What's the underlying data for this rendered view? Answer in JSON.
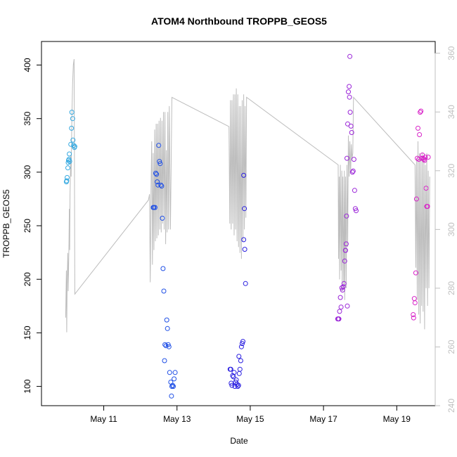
{
  "chart_data": {
    "type": "scatter",
    "title": "ATOM4 Northbound TROPPB_GEOS5",
    "xlabel": "Date",
    "ylabel": "TROPPB_GEOS5",
    "x_ticks": [
      {
        "t": 11,
        "label": "May 11"
      },
      {
        "t": 13,
        "label": "May 13"
      },
      {
        "t": 15,
        "label": "May 15"
      },
      {
        "t": 17,
        "label": "May 17"
      },
      {
        "t": 19,
        "label": "May 19"
      }
    ],
    "xlim": [
      9.3,
      20.05
    ],
    "ylim": [
      82,
      422
    ],
    "y_ticks": [
      100,
      150,
      200,
      250,
      300,
      350,
      400
    ],
    "y2_ticks": [
      240,
      260,
      280,
      300,
      320,
      340,
      360
    ],
    "y2lim": [
      240,
      364
    ],
    "colors": {
      "flight1": "#33a8e0",
      "flight2": "#1f4fe6",
      "flight3": "#2a1fe0",
      "flight4": "#9a24d8",
      "flight5": "#d824c8",
      "line": "#bdbdbd"
    },
    "series": [
      {
        "color_key": "flight1",
        "points": [
          [
            9.98,
            291
          ],
          [
            9.99,
            292
          ],
          [
            10.0,
            295
          ],
          [
            10.02,
            304
          ],
          [
            10.03,
            309
          ],
          [
            10.04,
            311
          ],
          [
            10.05,
            312
          ],
          [
            10.06,
            317
          ],
          [
            10.07,
            310
          ],
          [
            10.1,
            326
          ],
          [
            10.12,
            341
          ],
          [
            10.13,
            356
          ],
          [
            10.15,
            350
          ],
          [
            10.16,
            330
          ],
          [
            10.18,
            325
          ],
          [
            10.2,
            323
          ],
          [
            10.21,
            324
          ]
        ]
      },
      {
        "color_key": "flight2",
        "points": [
          [
            12.35,
            267
          ],
          [
            12.37,
            267
          ],
          [
            12.4,
            267
          ],
          [
            12.42,
            299
          ],
          [
            12.44,
            298
          ],
          [
            12.46,
            291
          ],
          [
            12.48,
            288
          ],
          [
            12.5,
            325
          ],
          [
            12.52,
            310
          ],
          [
            12.54,
            308
          ],
          [
            12.56,
            288
          ],
          [
            12.58,
            287
          ],
          [
            12.6,
            257
          ],
          [
            12.62,
            210
          ],
          [
            12.64,
            189
          ],
          [
            12.67,
            139
          ],
          [
            12.7,
            138
          ],
          [
            12.72,
            162
          ],
          [
            12.74,
            154
          ],
          [
            12.76,
            139
          ],
          [
            12.78,
            137
          ],
          [
            12.66,
            124
          ],
          [
            12.8,
            113
          ],
          [
            12.83,
            104
          ],
          [
            12.86,
            100
          ],
          [
            12.88,
            101
          ],
          [
            12.9,
            100
          ],
          [
            12.92,
            107
          ],
          [
            12.85,
            91
          ],
          [
            12.95,
            113
          ]
        ]
      },
      {
        "color_key": "flight3",
        "points": [
          [
            14.45,
            116
          ],
          [
            14.47,
            116
          ],
          [
            14.48,
            103
          ],
          [
            14.5,
            101
          ],
          [
            14.52,
            110
          ],
          [
            14.54,
            109
          ],
          [
            14.56,
            113
          ],
          [
            14.58,
            100
          ],
          [
            14.6,
            104
          ],
          [
            14.62,
            106
          ],
          [
            14.64,
            102
          ],
          [
            14.66,
            100
          ],
          [
            14.68,
            101
          ],
          [
            14.7,
            112
          ],
          [
            14.72,
            116
          ],
          [
            14.74,
            124
          ],
          [
            14.76,
            137
          ],
          [
            14.78,
            140
          ],
          [
            14.8,
            142
          ],
          [
            14.82,
            297
          ],
          [
            14.84,
            266
          ],
          [
            14.82,
            237
          ],
          [
            14.85,
            228
          ],
          [
            14.87,
            196
          ],
          [
            14.69,
            128
          ]
        ]
      },
      {
        "color_key": "flight4",
        "points": [
          [
            17.39,
            163
          ],
          [
            17.41,
            163
          ],
          [
            17.42,
            163
          ],
          [
            17.44,
            170
          ],
          [
            17.46,
            183
          ],
          [
            17.48,
            174
          ],
          [
            17.5,
            192
          ],
          [
            17.52,
            190
          ],
          [
            17.54,
            193
          ],
          [
            17.56,
            196
          ],
          [
            17.58,
            217
          ],
          [
            17.6,
            227
          ],
          [
            17.62,
            233
          ],
          [
            17.63,
            259
          ],
          [
            17.64,
            313
          ],
          [
            17.66,
            345
          ],
          [
            17.68,
            375
          ],
          [
            17.7,
            380
          ],
          [
            17.71,
            370
          ],
          [
            17.72,
            408
          ],
          [
            17.73,
            356
          ],
          [
            17.75,
            343
          ],
          [
            17.77,
            337
          ],
          [
            17.79,
            300
          ],
          [
            17.81,
            301
          ],
          [
            17.83,
            312
          ],
          [
            17.85,
            283
          ],
          [
            17.87,
            266
          ],
          [
            17.89,
            264
          ],
          [
            17.6,
            227
          ],
          [
            17.65,
            175
          ]
        ]
      },
      {
        "color_key": "flight5",
        "points": [
          [
            19.45,
            167
          ],
          [
            19.46,
            164
          ],
          [
            19.48,
            182
          ],
          [
            19.5,
            178
          ],
          [
            19.52,
            206
          ],
          [
            19.54,
            275
          ],
          [
            19.56,
            313
          ],
          [
            19.58,
            341
          ],
          [
            19.6,
            312
          ],
          [
            19.62,
            335
          ],
          [
            19.64,
            356
          ],
          [
            19.66,
            357
          ],
          [
            19.68,
            313
          ],
          [
            19.7,
            316
          ],
          [
            19.72,
            313
          ],
          [
            19.74,
            312
          ],
          [
            19.76,
            311
          ],
          [
            19.78,
            314
          ],
          [
            19.8,
            285
          ],
          [
            19.82,
            268
          ],
          [
            19.84,
            268
          ],
          [
            19.86,
            314
          ]
        ]
      }
    ],
    "line_y2": [
      [
        9.96,
        270
      ],
      [
        9.98,
        286
      ],
      [
        9.99,
        265
      ],
      [
        10.0,
        282
      ],
      [
        10.02,
        292
      ],
      [
        10.03,
        279
      ],
      [
        10.05,
        295
      ],
      [
        10.06,
        307
      ],
      [
        10.07,
        293
      ],
      [
        10.08,
        312
      ],
      [
        10.1,
        325
      ],
      [
        10.11,
        318
      ],
      [
        10.13,
        338
      ],
      [
        10.15,
        350
      ],
      [
        10.17,
        356
      ],
      [
        10.19,
        358
      ],
      [
        10.2,
        322
      ],
      [
        10.21,
        278
      ],
      [
        12.22,
        310
      ],
      [
        12.25,
        312
      ],
      [
        12.27,
        282
      ],
      [
        12.29,
        314
      ],
      [
        12.31,
        330
      ],
      [
        12.33,
        288
      ],
      [
        12.35,
        326
      ],
      [
        12.37,
        293
      ],
      [
        12.39,
        334
      ],
      [
        12.41,
        296
      ],
      [
        12.43,
        336
      ],
      [
        12.45,
        297
      ],
      [
        12.47,
        336
      ],
      [
        12.49,
        298
      ],
      [
        12.51,
        337
      ],
      [
        12.53,
        300
      ],
      [
        12.55,
        338
      ],
      [
        12.57,
        299
      ],
      [
        12.59,
        337
      ],
      [
        12.61,
        302
      ],
      [
        12.63,
        340
      ],
      [
        12.65,
        300
      ],
      [
        12.67,
        340
      ],
      [
        12.69,
        295
      ],
      [
        12.71,
        327
      ],
      [
        12.73,
        299
      ],
      [
        12.75,
        340
      ],
      [
        12.77,
        300
      ],
      [
        12.79,
        342
      ],
      [
        12.82,
        300
      ],
      [
        12.86,
        345
      ],
      [
        14.42,
        335
      ],
      [
        14.44,
        302
      ],
      [
        14.46,
        344
      ],
      [
        14.48,
        300
      ],
      [
        14.5,
        344
      ],
      [
        14.52,
        302
      ],
      [
        14.54,
        346
      ],
      [
        14.56,
        298
      ],
      [
        14.58,
        346
      ],
      [
        14.6,
        300
      ],
      [
        14.62,
        348
      ],
      [
        14.64,
        296
      ],
      [
        14.66,
        346
      ],
      [
        14.68,
        294
      ],
      [
        14.7,
        342
      ],
      [
        14.72,
        292
      ],
      [
        14.74,
        342
      ],
      [
        14.76,
        290
      ],
      [
        14.78,
        344
      ],
      [
        14.8,
        296
      ],
      [
        14.82,
        346
      ],
      [
        14.84,
        300
      ],
      [
        14.86,
        342
      ],
      [
        14.88,
        304
      ],
      [
        14.9,
        345
      ],
      [
        17.4,
        322
      ],
      [
        17.41,
        290
      ],
      [
        17.43,
        318
      ],
      [
        17.44,
        283
      ],
      [
        17.46,
        322
      ],
      [
        17.48,
        286
      ],
      [
        17.5,
        320
      ],
      [
        17.51,
        279
      ],
      [
        17.53,
        318
      ],
      [
        17.55,
        281
      ],
      [
        17.57,
        320
      ],
      [
        17.58,
        276
      ],
      [
        17.6,
        318
      ],
      [
        17.62,
        280
      ],
      [
        17.64,
        322
      ],
      [
        17.66,
        294
      ],
      [
        17.68,
        332
      ],
      [
        17.7,
        318
      ],
      [
        17.72,
        330
      ],
      [
        17.74,
        319
      ],
      [
        17.76,
        329
      ],
      [
        17.78,
        324
      ],
      [
        17.8,
        326
      ],
      [
        17.82,
        345
      ],
      [
        19.5,
        322
      ],
      [
        19.52,
        287
      ],
      [
        19.54,
        324
      ],
      [
        19.56,
        276
      ],
      [
        19.58,
        330
      ],
      [
        19.6,
        271
      ],
      [
        19.62,
        326
      ],
      [
        19.64,
        268
      ],
      [
        19.66,
        324
      ],
      [
        19.68,
        274
      ],
      [
        19.7,
        326
      ],
      [
        19.72,
        272
      ],
      [
        19.74,
        324
      ],
      [
        19.76,
        266
      ],
      [
        19.78,
        322
      ],
      [
        19.8,
        280
      ],
      [
        19.82,
        326
      ],
      [
        19.84,
        274
      ],
      [
        19.86,
        320
      ],
      [
        19.88,
        280
      ],
      [
        19.9,
        318
      ]
    ]
  }
}
